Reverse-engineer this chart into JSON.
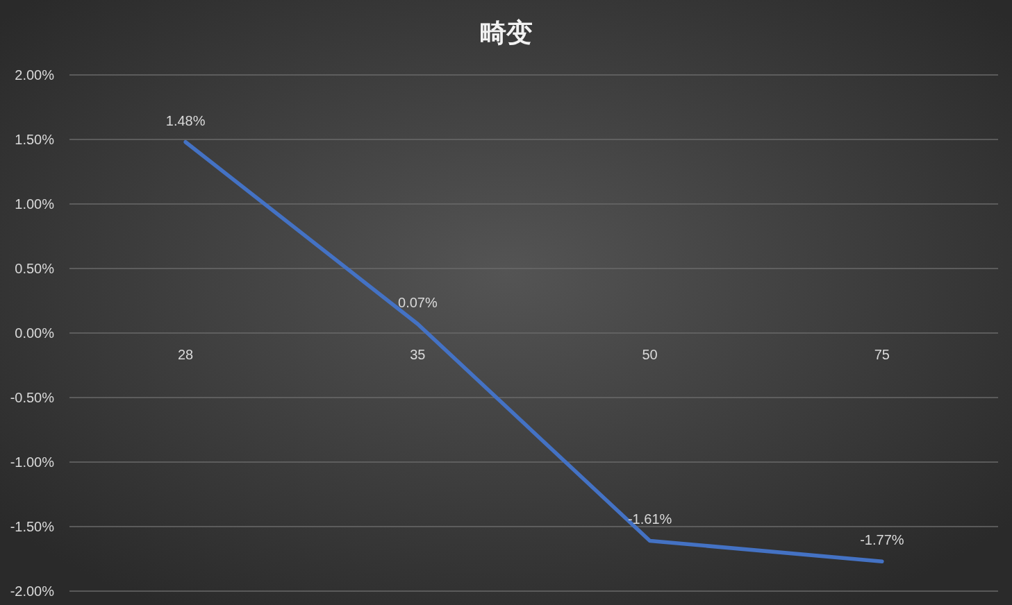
{
  "chart_data": {
    "type": "line",
    "title": "畸变",
    "categories": [
      "28",
      "35",
      "50",
      "75"
    ],
    "series": [
      {
        "color": "#4472c4",
        "values": [
          1.48,
          0.07,
          -1.61,
          -1.77
        ],
        "value_labels": [
          "1.48%",
          "0.07%",
          "-1.61%",
          "-1.77%"
        ]
      }
    ],
    "ylim": [
      -2,
      2
    ],
    "yticks": [
      {
        "value": 2,
        "label": "2.00%"
      },
      {
        "value": 1.5,
        "label": "1.50%"
      },
      {
        "value": 1,
        "label": "1.00%"
      },
      {
        "value": 0.5,
        "label": "0.50%"
      },
      {
        "value": 0,
        "label": "0.00%"
      },
      {
        "value": -0.5,
        "label": "-0.50%"
      },
      {
        "value": -1,
        "label": "-1.00%"
      },
      {
        "value": -1.5,
        "label": "-1.50%"
      },
      {
        "value": -2,
        "label": "-2.00%"
      }
    ],
    "grid": "y"
  }
}
